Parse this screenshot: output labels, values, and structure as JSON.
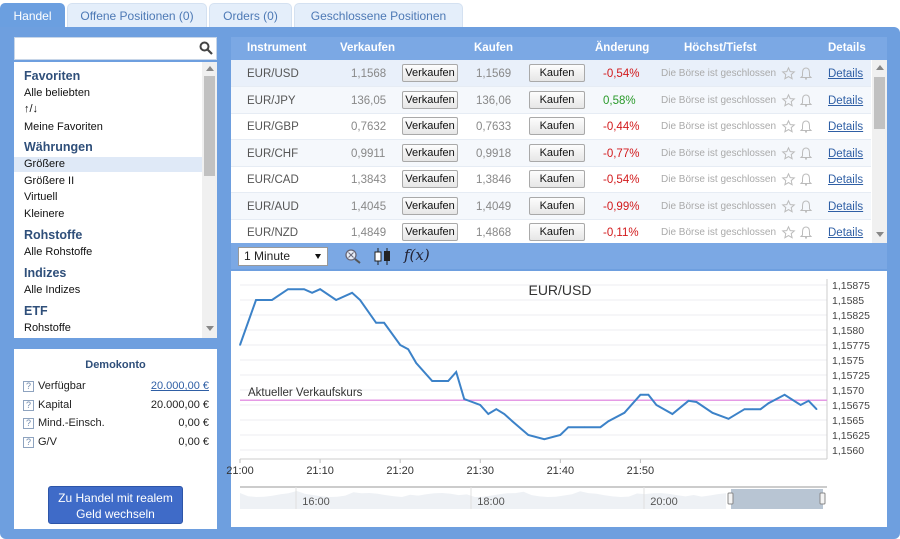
{
  "tabs": [
    {
      "label": "Handel"
    },
    {
      "label": "Offene Positionen (0)"
    },
    {
      "label": "Orders (0)"
    },
    {
      "label": "Geschlossene Positionen"
    }
  ],
  "search": {
    "placeholder": ""
  },
  "favorites": {
    "sections": [
      {
        "header": "Favoriten",
        "items": [
          "Alle beliebten",
          "↑/↓",
          "Meine Favoriten"
        ]
      },
      {
        "header": "Währungen",
        "items": [
          "Größere",
          "Größere II",
          "Virtuell",
          "Kleinere"
        ]
      },
      {
        "header": "Rohstoffe",
        "items": [
          "Alle Rohstoffe"
        ]
      },
      {
        "header": "Indizes",
        "items": [
          "Alle Indizes"
        ]
      },
      {
        "header": "ETF",
        "items": [
          "Rohstoffe"
        ]
      }
    ],
    "selected": "Größere"
  },
  "demo": {
    "title": "Demokonto",
    "rows": [
      {
        "label": "Verfügbar",
        "value": "20.000,00 €",
        "link": true
      },
      {
        "label": "Kapital",
        "value": "20.000,00 €",
        "link": false
      },
      {
        "label": "Mind.-Einsch.",
        "value": "0,00 €",
        "link": false
      },
      {
        "label": "G/V",
        "value": "0,00 €",
        "link": false
      }
    ]
  },
  "real_button": {
    "line1": "Zu Handel mit realem",
    "line2": "Geld wechseln"
  },
  "table": {
    "headers": {
      "instrument": "Instrument",
      "sell": "Verkaufen",
      "buy": "Kaufen",
      "change": "Änderung",
      "hilo": "Höchst/Tiefst",
      "details": "Details"
    },
    "sell_btn": "Verkaufen",
    "buy_btn": "Kaufen",
    "closed": "Die Börse ist geschlossen",
    "details_link": "Details",
    "rows": [
      {
        "symbol": "EUR/USD",
        "sell": "1,1568",
        "buy": "1,1569",
        "change": "-0,54%"
      },
      {
        "symbol": "EUR/JPY",
        "sell": "136,05",
        "buy": "136,06",
        "change": "0,58%"
      },
      {
        "symbol": "EUR/GBP",
        "sell": "0,7632",
        "buy": "0,7633",
        "change": "-0,44%"
      },
      {
        "symbol": "EUR/CHF",
        "sell": "0,9911",
        "buy": "0,9918",
        "change": "-0,77%"
      },
      {
        "symbol": "EUR/CAD",
        "sell": "1,3843",
        "buy": "1,3846",
        "change": "-0,54%"
      },
      {
        "symbol": "EUR/AUD",
        "sell": "1,4045",
        "buy": "1,4049",
        "change": "-0,99%"
      },
      {
        "symbol": "EUR/NZD",
        "sell": "1,4849",
        "buy": "1,4868",
        "change": "-0,11%"
      }
    ]
  },
  "toolbar": {
    "interval": "1 Minute",
    "fx_label": "f(x)"
  },
  "chart_data": {
    "type": "line",
    "title": "EUR/USD",
    "annotation": "Aktueller Verkaufskurs",
    "reference_line": 1.15683,
    "xlabel": "",
    "ylabel": "",
    "x_ticks": [
      "21:00",
      "21:10",
      "21:20",
      "21:30",
      "21:40",
      "21:50"
    ],
    "y_ticks": [
      "1,15875",
      "1,1585",
      "1,15825",
      "1,1580",
      "1,15775",
      "1,1575",
      "1,15725",
      "1,1570",
      "1,15675",
      "1,1565",
      "1,15625",
      "1,1560"
    ],
    "ylim": [
      1.15585,
      1.15885
    ],
    "x_minutes": [
      0,
      2,
      4,
      6,
      8,
      9,
      10,
      12,
      14,
      15,
      17,
      18,
      20,
      21,
      22,
      24,
      26,
      27,
      28,
      30,
      31,
      32,
      33,
      34,
      36,
      38,
      40,
      41,
      43,
      45,
      46,
      48,
      50,
      51,
      52,
      54,
      56,
      57,
      59,
      61,
      63,
      64,
      65,
      66,
      68,
      70,
      71,
      72
    ],
    "values": [
      1.15775,
      1.1585,
      1.1585,
      1.15868,
      1.15868,
      1.15862,
      1.15868,
      1.1585,
      1.15862,
      1.1585,
      1.15812,
      1.15812,
      1.15775,
      1.15768,
      1.15745,
      1.15715,
      1.15715,
      1.1573,
      1.15685,
      1.15675,
      1.1566,
      1.15668,
      1.1566,
      1.15648,
      1.15625,
      1.15618,
      1.15625,
      1.15638,
      1.15638,
      1.15638,
      1.15648,
      1.15662,
      1.15692,
      1.15692,
      1.15675,
      1.1566,
      1.15682,
      1.1568,
      1.15662,
      1.15652,
      1.15668,
      1.15668,
      1.15668,
      1.15678,
      1.15692,
      1.15675,
      1.15682,
      1.15668
    ],
    "navigator_ticks": [
      "16:00",
      "18:00",
      "20:00"
    ],
    "colors": {
      "line": "#3c82c8",
      "reference": "#e59ae5",
      "navigator": "#b8c5d3"
    }
  }
}
